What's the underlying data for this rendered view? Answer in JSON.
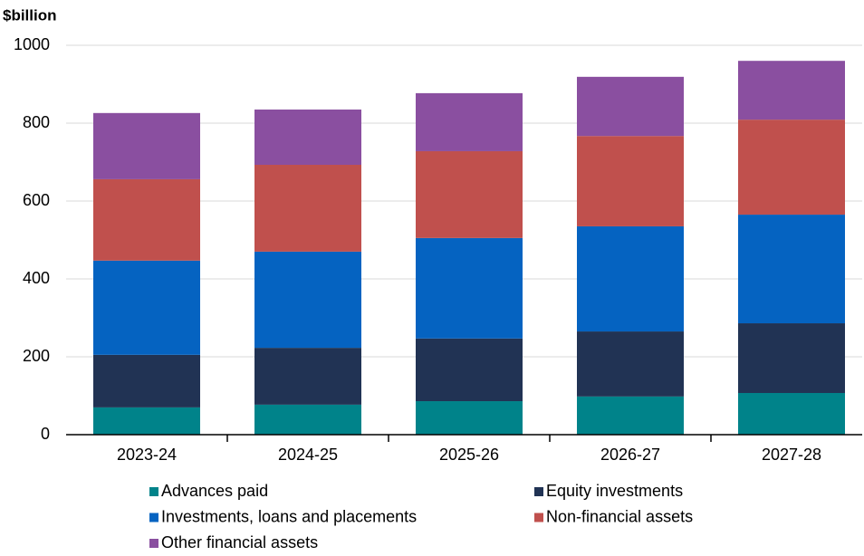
{
  "chart_data": {
    "type": "stacked-bar",
    "y_label": "$billion",
    "categories": [
      "2023-24",
      "2024-25",
      "2025-26",
      "2026-27",
      "2027-28"
    ],
    "series": [
      {
        "name": "Advances paid",
        "color": "#00838a",
        "values": [
          70,
          77,
          86,
          98,
          107
        ]
      },
      {
        "name": "Equity investments",
        "color": "#213354",
        "values": [
          135,
          146,
          161,
          167,
          179
        ]
      },
      {
        "name": "Investments, loans and placements",
        "color": "#0563c1",
        "values": [
          242,
          247,
          258,
          270,
          279
        ]
      },
      {
        "name": "Non-financial assets",
        "color": "#c0504d",
        "values": [
          209,
          223,
          223,
          232,
          244
        ]
      },
      {
        "name": "Other financial assets",
        "color": "#8a4fa0",
        "values": [
          170,
          142,
          149,
          152,
          151
        ]
      }
    ],
    "ylim": [
      0,
      1000
    ],
    "yticks": [
      0,
      200,
      400,
      600,
      800,
      1000
    ],
    "grid": true,
    "legend": "bottom"
  }
}
